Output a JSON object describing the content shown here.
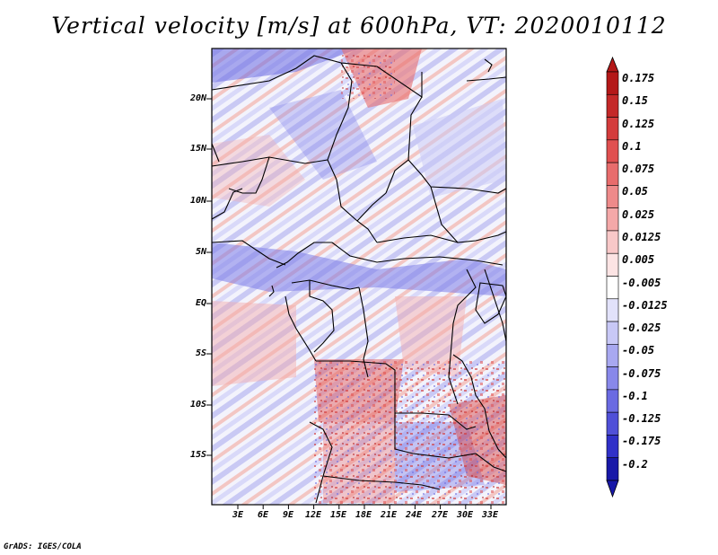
{
  "title": "Vertical velocity [m/s] at 600hPa, VT: 2020010112",
  "footer": "GrADS: IGES/COLA",
  "map": {
    "lat_labels": [
      "20N",
      "15N",
      "10N",
      "5N",
      "EQ",
      "5S",
      "10S",
      "15S"
    ],
    "lon_labels": [
      "3E",
      "6E",
      "9E",
      "12E",
      "15E",
      "18E",
      "21E",
      "24E",
      "27E",
      "30E",
      "33E"
    ],
    "colors": {
      "positive": "#e8786e",
      "negative": "#7b7be8",
      "neutral": "#f4f4fb",
      "border": "#000000"
    }
  },
  "colorbar": {
    "labels": [
      "0.175",
      "0.15",
      "0.125",
      "0.1",
      "0.075",
      "0.05",
      "0.025",
      "0.0125",
      "0.005",
      "-0.005",
      "-0.0125",
      "-0.025",
      "-0.05",
      "-0.075",
      "-0.1",
      "-0.125",
      "-0.175",
      "-0.2"
    ],
    "colors": [
      "#b41818",
      "#c42828",
      "#d43c3c",
      "#e05050",
      "#e86c6c",
      "#ee8a8a",
      "#f4a8a8",
      "#f8c8c8",
      "#fce4e4",
      "#ffffff",
      "#e2e2fa",
      "#c8c8f6",
      "#a8a8f0",
      "#8888ea",
      "#6a6ae2",
      "#5050d8",
      "#3030c8",
      "#1818a8"
    ]
  }
}
